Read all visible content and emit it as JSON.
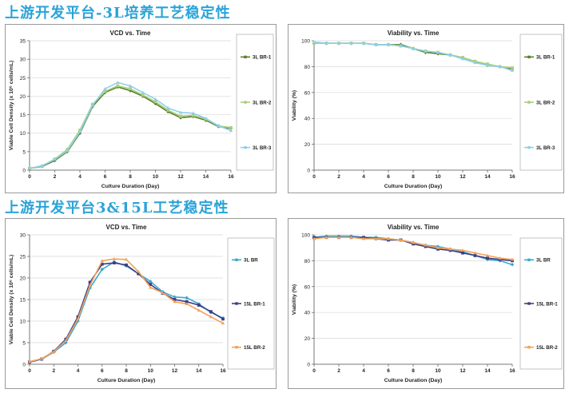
{
  "headings": {
    "top": "上游开发平台-3L培养工艺稳定性",
    "bottom": "上游开发平台3&15L工艺稳定性"
  },
  "colors": {
    "br1_dark_green": "#5a7f2a",
    "br2_light_green": "#a9cf7a",
    "br3_light_blue": "#8ed0ea",
    "blue_3l": "#3da7d0",
    "navy_15l_br1": "#3b3f86",
    "orange_15l_br2": "#f4a259",
    "heading": "#2aa3d8"
  },
  "chart_data": [
    {
      "id": "vcd_3l",
      "type": "line",
      "title": "VCD vs. Time",
      "xlabel": "Culture Duration (Day)",
      "ylabel": "Viable Cell Density (x 10⁶ cells/mL)",
      "xlim": [
        0,
        16
      ],
      "ylim": [
        0,
        35
      ],
      "xticks": [
        0,
        2,
        4,
        6,
        8,
        10,
        12,
        14,
        16
      ],
      "yticks": [
        0,
        5,
        10,
        15,
        20,
        25,
        30,
        35
      ],
      "legend_position": "right",
      "series": [
        {
          "name": "3L BR-1",
          "color": "#5a7f2a",
          "x": [
            0,
            1,
            2,
            3,
            4,
            5,
            6,
            7,
            8,
            9,
            10,
            11,
            12,
            13,
            14,
            15,
            16
          ],
          "y": [
            0.5,
            1.0,
            2.6,
            5.0,
            10.0,
            17.2,
            21.0,
            22.5,
            21.5,
            20.0,
            18.0,
            15.8,
            14.2,
            14.5,
            13.5,
            11.8,
            11.3
          ]
        },
        {
          "name": "3L BR-2",
          "color": "#a9cf7a",
          "x": [
            0,
            1,
            2,
            3,
            4,
            5,
            6,
            7,
            8,
            9,
            10,
            11,
            12,
            13,
            14,
            15,
            16
          ],
          "y": [
            0.5,
            1.1,
            3.0,
            5.6,
            10.8,
            17.8,
            21.3,
            22.8,
            22.0,
            20.3,
            18.5,
            16.2,
            14.6,
            14.8,
            13.8,
            12.0,
            11.5
          ]
        },
        {
          "name": "3L BR-3",
          "color": "#8ed0ea",
          "x": [
            0,
            1,
            2,
            3,
            4,
            5,
            6,
            7,
            8,
            9,
            10,
            11,
            12,
            13,
            14,
            15,
            16
          ],
          "y": [
            0.5,
            1.2,
            2.9,
            5.2,
            10.4,
            17.5,
            22.0,
            23.7,
            22.8,
            21.0,
            19.2,
            16.8,
            15.6,
            15.4,
            14.0,
            12.0,
            10.7
          ]
        }
      ]
    },
    {
      "id": "via_3l",
      "type": "line",
      "title": "Viability vs. Time",
      "xlabel": "Culture Duration (Day)",
      "ylabel": "Viability (%)",
      "xlim": [
        0,
        16
      ],
      "ylim": [
        0,
        100
      ],
      "xticks": [
        0,
        2,
        4,
        6,
        8,
        10,
        12,
        14,
        16
      ],
      "yticks": [
        0,
        20,
        40,
        60,
        80,
        100
      ],
      "legend_position": "right",
      "series": [
        {
          "name": "3L BR-1",
          "color": "#5a7f2a",
          "x": [
            0,
            1,
            2,
            3,
            4,
            5,
            6,
            7,
            8,
            9,
            10,
            11,
            12,
            13,
            14,
            15,
            16
          ],
          "y": [
            98,
            98,
            98,
            98,
            98,
            97,
            97,
            97,
            94,
            91,
            90,
            89,
            87,
            84,
            81,
            80,
            78
          ]
        },
        {
          "name": "3L BR-2",
          "color": "#a9cf7a",
          "x": [
            0,
            1,
            2,
            3,
            4,
            5,
            6,
            7,
            8,
            9,
            10,
            11,
            12,
            13,
            14,
            15,
            16
          ],
          "y": [
            98,
            98,
            98,
            98,
            98,
            97,
            97,
            96,
            94,
            92,
            91,
            89,
            87,
            84,
            82,
            80,
            79
          ]
        },
        {
          "name": "3L BR-3",
          "color": "#8ed0ea",
          "x": [
            0,
            1,
            2,
            3,
            4,
            5,
            6,
            7,
            8,
            9,
            10,
            11,
            12,
            13,
            14,
            15,
            16
          ],
          "y": [
            99,
            98,
            98,
            98,
            98,
            97,
            97,
            96,
            94,
            92,
            91,
            89,
            86,
            83,
            81,
            80,
            77
          ]
        }
      ]
    },
    {
      "id": "vcd_3_15l",
      "type": "line",
      "title": "VCD vs. Time",
      "xlabel": "Culture Duration (Day)",
      "ylabel": "Viable Cell Density (x 10⁶ cells/mL)",
      "xlim": [
        0,
        16
      ],
      "ylim": [
        0,
        30
      ],
      "xticks": [
        0,
        2,
        4,
        6,
        8,
        10,
        12,
        14,
        16
      ],
      "yticks": [
        0,
        5,
        10,
        15,
        20,
        25,
        30
      ],
      "legend_position": "right",
      "series": [
        {
          "name": "3L BR",
          "color": "#3da7d0",
          "x": [
            0,
            1,
            2,
            3,
            4,
            5,
            6,
            7,
            8,
            9,
            10,
            11,
            12,
            13,
            14,
            15,
            16
          ],
          "y": [
            0.5,
            1.2,
            2.8,
            5.0,
            10.0,
            17.7,
            22.0,
            23.7,
            22.8,
            21.0,
            19.2,
            16.8,
            15.6,
            15.4,
            14.0,
            12.0,
            10.7
          ]
        },
        {
          "name": "15L BR-1",
          "color": "#3b3f86",
          "x": [
            0,
            1,
            2,
            3,
            4,
            5,
            6,
            7,
            8,
            9,
            10,
            11,
            12,
            13,
            14,
            15,
            16
          ],
          "y": [
            0.5,
            1.2,
            3.0,
            5.8,
            11.0,
            19.0,
            23.2,
            23.5,
            23.0,
            21.0,
            18.5,
            16.5,
            15.0,
            14.5,
            13.7,
            12.2,
            10.5
          ]
        },
        {
          "name": "15L BR-2",
          "color": "#f4a259",
          "x": [
            0,
            1,
            2,
            3,
            4,
            5,
            6,
            7,
            8,
            9,
            10,
            11,
            12,
            13,
            14,
            15,
            16
          ],
          "y": [
            0.6,
            1.3,
            2.9,
            5.5,
            10.5,
            18.3,
            24.0,
            24.4,
            24.3,
            21.5,
            17.8,
            16.6,
            14.5,
            14.0,
            12.5,
            11.0,
            9.5
          ]
        }
      ]
    },
    {
      "id": "via_3_15l",
      "type": "line",
      "title": "Viability vs. Time",
      "xlabel": "Culture Duration (Day)",
      "ylabel": "Viability (%)",
      "xlim": [
        0,
        16
      ],
      "ylim": [
        0,
        100
      ],
      "xticks": [
        0,
        2,
        4,
        6,
        8,
        10,
        12,
        14,
        16
      ],
      "yticks": [
        0,
        20,
        40,
        60,
        80,
        100
      ],
      "legend_position": "right",
      "series": [
        {
          "name": "3L BR",
          "color": "#3da7d0",
          "x": [
            0,
            1,
            2,
            3,
            4,
            5,
            6,
            7,
            8,
            9,
            10,
            11,
            12,
            13,
            14,
            15,
            16
          ],
          "y": [
            98,
            99,
            99,
            99,
            98,
            98,
            97,
            96,
            94,
            92,
            91,
            89,
            87,
            84,
            81,
            80,
            77
          ]
        },
        {
          "name": "15L BR-1",
          "color": "#3b3f86",
          "x": [
            0,
            1,
            2,
            3,
            4,
            5,
            6,
            7,
            8,
            9,
            10,
            11,
            12,
            13,
            14,
            15,
            16
          ],
          "y": [
            98,
            98,
            98,
            98,
            98,
            97,
            96,
            96,
            93,
            91,
            89,
            88,
            86,
            84,
            82,
            81,
            80
          ]
        },
        {
          "name": "15L BR-2",
          "color": "#f4a259",
          "x": [
            0,
            1,
            2,
            3,
            4,
            5,
            6,
            7,
            8,
            9,
            10,
            11,
            12,
            13,
            14,
            15,
            16
          ],
          "y": [
            97,
            98,
            98,
            98,
            97,
            97,
            97,
            96,
            94,
            92,
            90,
            89,
            88,
            86,
            84,
            82,
            81
          ]
        }
      ]
    }
  ]
}
